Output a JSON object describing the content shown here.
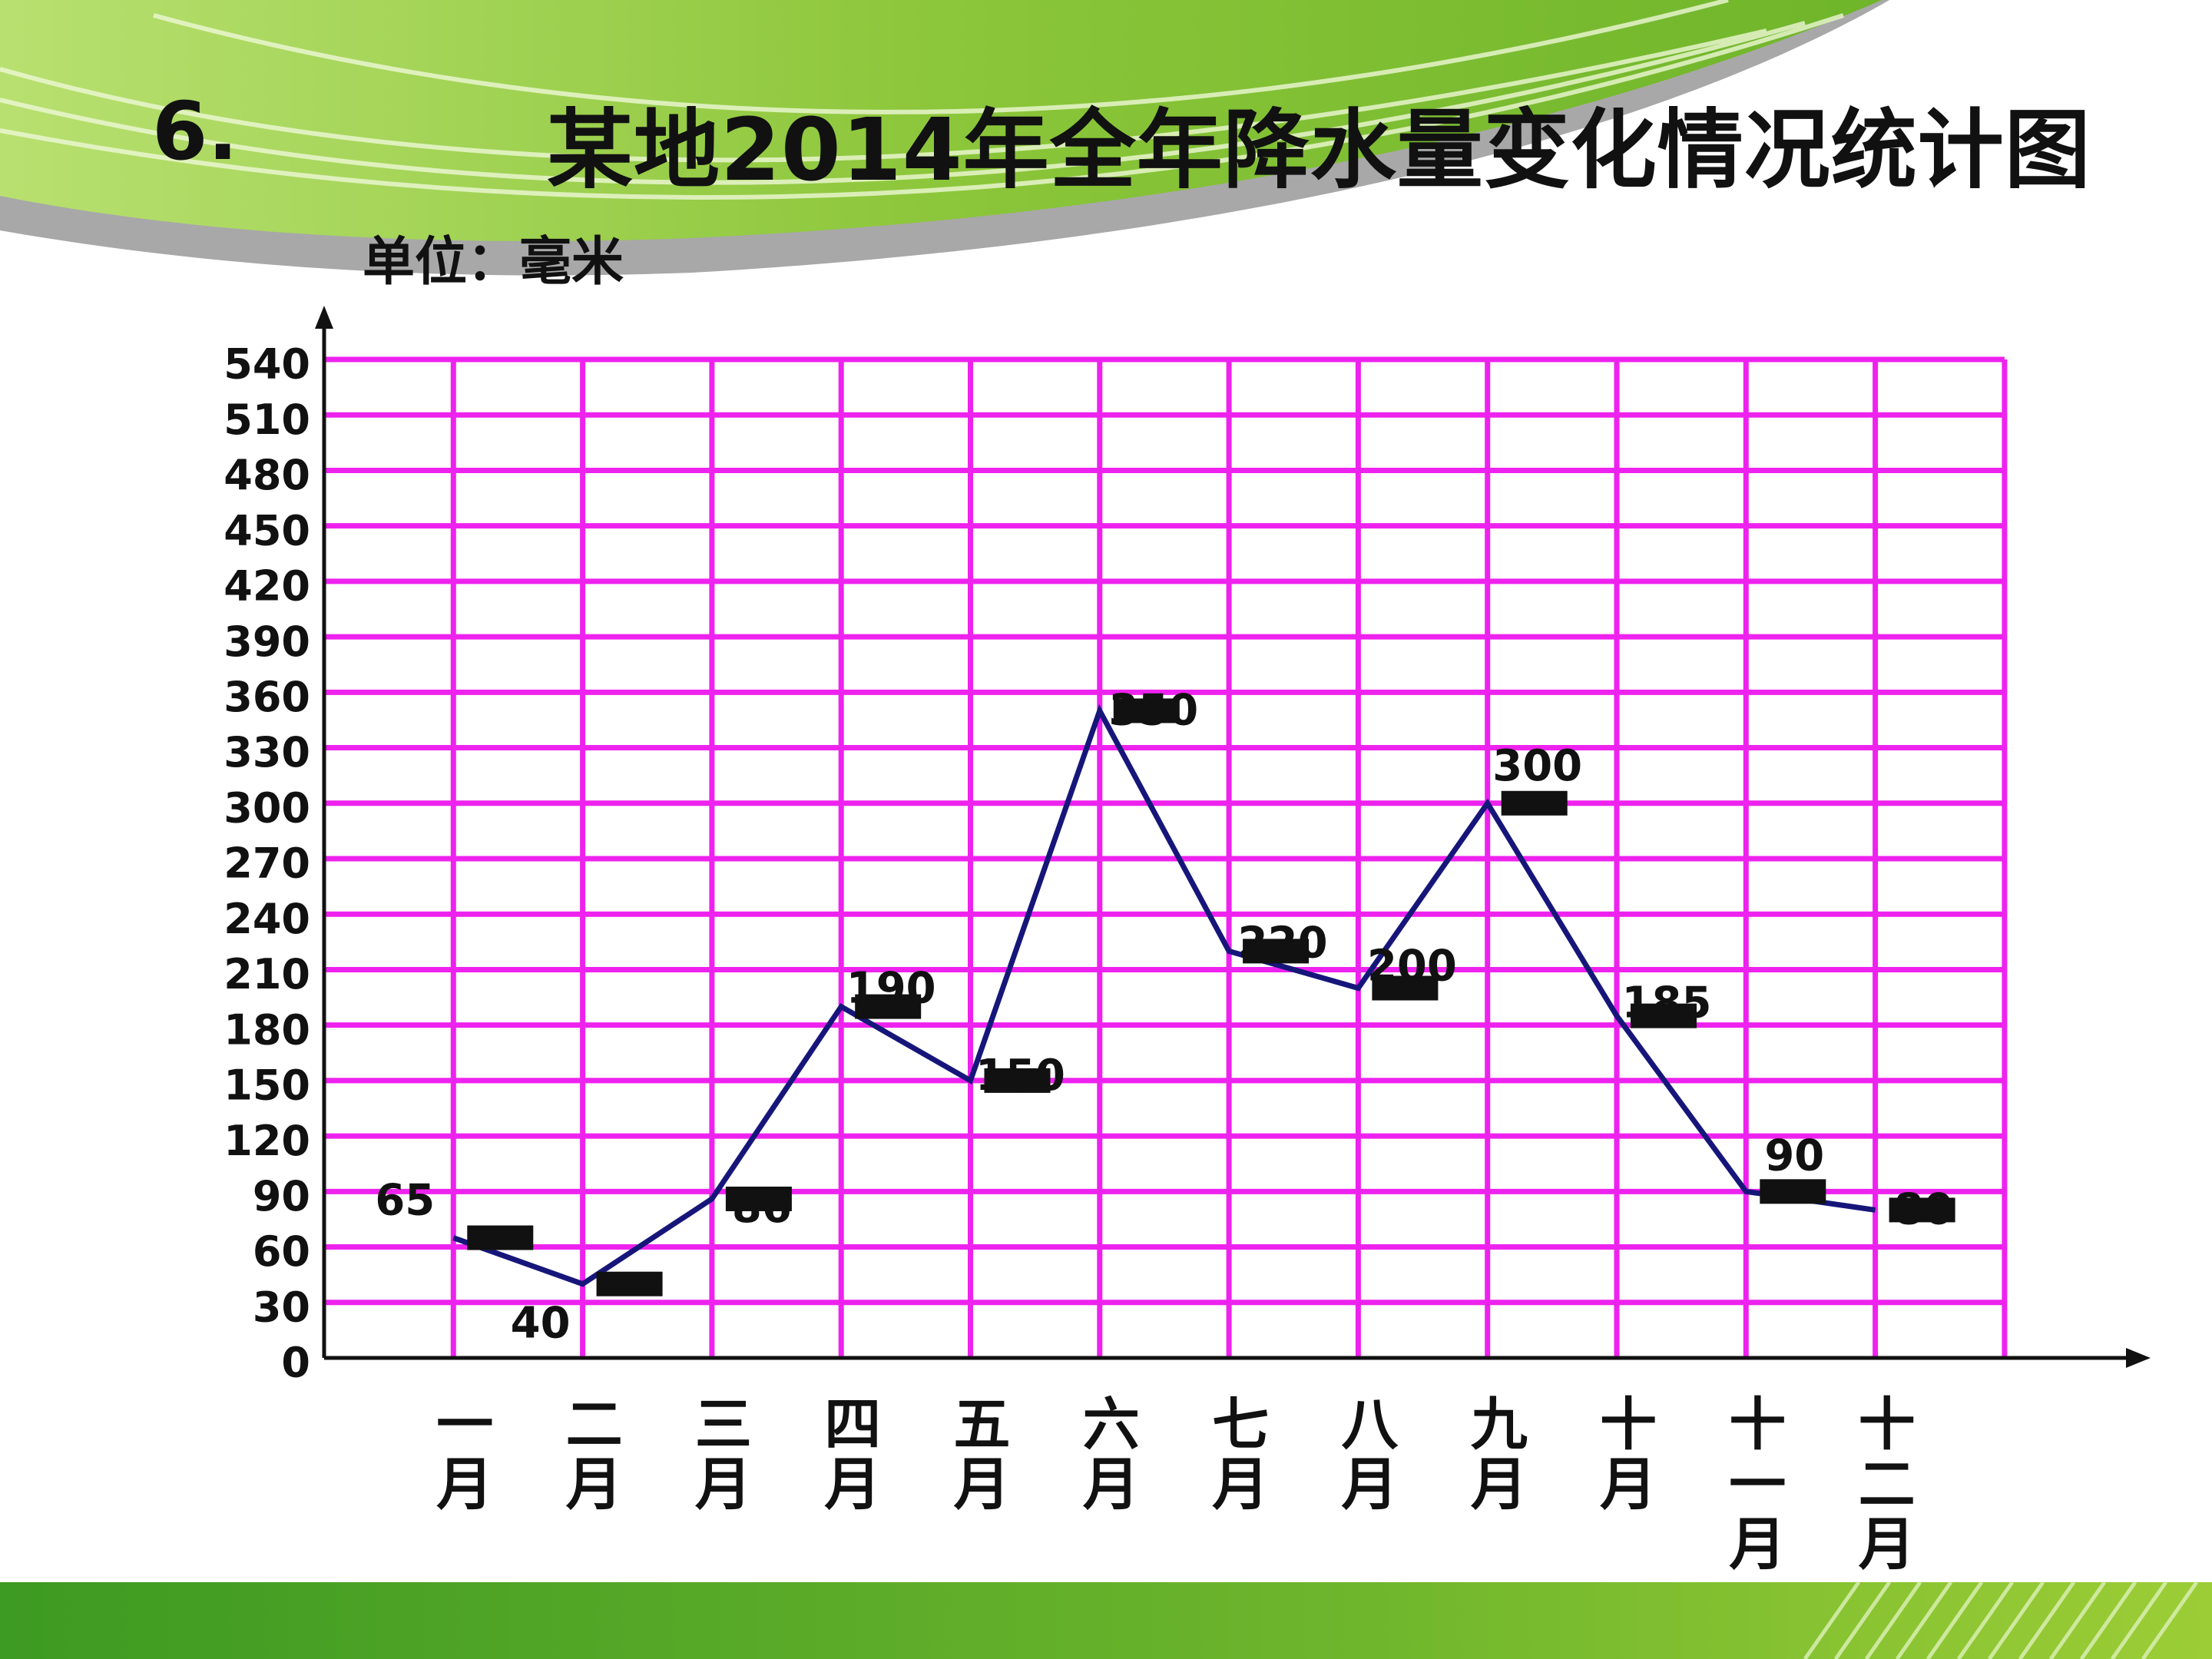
{
  "slide": {
    "question_number": "6.",
    "title": "某地2014年全年降水量变化情况统计图",
    "unit_label": "单位：毫米"
  },
  "colors": {
    "grid": "#ee22ee",
    "line": "#16167a",
    "marker": "#111111",
    "green_dark": "#3f9a1e",
    "green_light": "#9bd02a"
  },
  "chart_data": {
    "type": "line",
    "title": "某地2014年全年降水量变化情况统计图",
    "ylabel": "单位：毫米",
    "xlabel": "",
    "ylim": [
      0,
      540
    ],
    "y_ticks": [
      0,
      30,
      60,
      90,
      120,
      150,
      180,
      210,
      240,
      270,
      300,
      330,
      360,
      390,
      420,
      450,
      480,
      510,
      540
    ],
    "categories": [
      "一月",
      "二月",
      "三月",
      "四月",
      "五月",
      "六月",
      "七月",
      "八月",
      "九月",
      "十月",
      "十一月",
      "十二月"
    ],
    "category_lines": [
      [
        "一",
        "月"
      ],
      [
        "二",
        "月"
      ],
      [
        "三",
        "月"
      ],
      [
        "四",
        "月"
      ],
      [
        "五",
        "月"
      ],
      [
        "六",
        "月"
      ],
      [
        "七",
        "月"
      ],
      [
        "八",
        "月"
      ],
      [
        "九",
        "月"
      ],
      [
        "十",
        "月"
      ],
      [
        "十",
        "一",
        "月"
      ],
      [
        "十",
        "二",
        "月"
      ]
    ],
    "values": [
      65,
      40,
      86,
      190,
      150,
      350,
      220,
      200,
      300,
      185,
      90,
      80
    ],
    "data_labels": [
      "65",
      "40",
      "86",
      "190",
      "150",
      "350",
      "220",
      "200",
      "300",
      "185",
      "90",
      "80"
    ],
    "grid": true,
    "legend": "none"
  }
}
